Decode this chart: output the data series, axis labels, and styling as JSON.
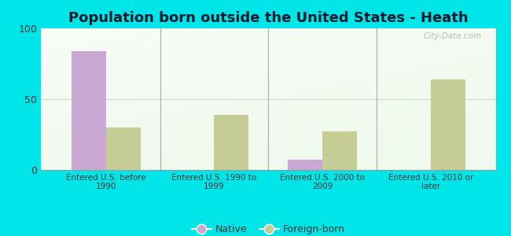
{
  "title": "Population born outside the United States - Heath",
  "categories": [
    "Entered U.S. before\n1990",
    "Entered U.S. 1990 to\n1999",
    "Entered U.S. 2000 to\n2009",
    "Entered U.S. 2010 or\nlater"
  ],
  "native_values": [
    84,
    0,
    7,
    0
  ],
  "foreign_values": [
    30,
    39,
    27,
    64
  ],
  "native_color": "#c9a8d4",
  "foreign_color": "#c5cc96",
  "outer_background": "#00e5e8",
  "ylim": [
    0,
    100
  ],
  "yticks": [
    0,
    50,
    100
  ],
  "title_fontsize": 13,
  "title_color": "#1a1a2e",
  "legend_labels": [
    "Native",
    "Foreign-born"
  ],
  "watermark": "City-Data.com",
  "separator_color": "#aaaaaa",
  "bar_width": 0.32,
  "grid_color": "#ccddcc"
}
